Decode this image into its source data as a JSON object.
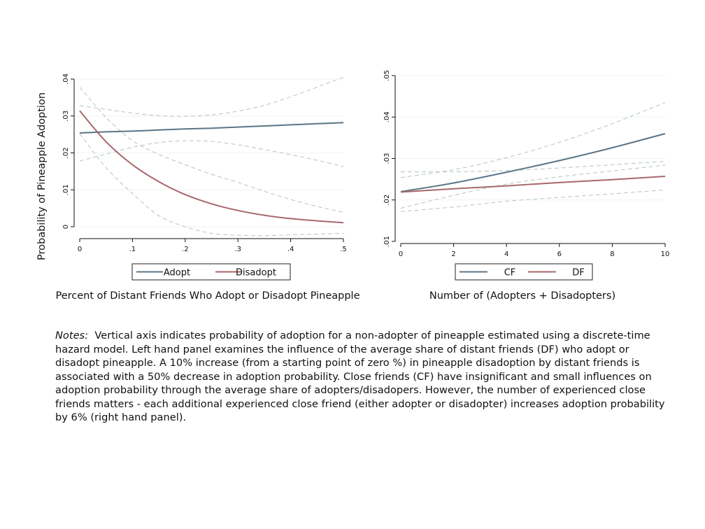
{
  "ylabel": "Probability of Pineapple Adoption",
  "colors": {
    "series_a": "#5b7587",
    "series_b": "#a8676c",
    "ci": "#b3c6bc",
    "grid": "#eef2f5",
    "axis": "#111111"
  },
  "chart_data": [
    {
      "type": "line",
      "xlabel": "Percent of Distant Friends Who Adopt or Disadopt Pineapple",
      "xlim": [
        0,
        0.5
      ],
      "ylim": [
        0,
        0.04
      ],
      "xticks": [
        0,
        0.1,
        0.2,
        0.3,
        0.4,
        0.5
      ],
      "xticklabels": [
        "0",
        ".1",
        ".2",
        ".3",
        ".4",
        ".5"
      ],
      "yticks": [
        0,
        0.01,
        0.02,
        0.03,
        0.04
      ],
      "yticklabels": [
        "0",
        ".01",
        ".02",
        ".03",
        ".04"
      ],
      "grid": true,
      "legend": "bottom",
      "x": [
        0,
        0.05,
        0.1,
        0.15,
        0.2,
        0.25,
        0.3,
        0.35,
        0.4,
        0.45,
        0.5
      ],
      "series": [
        {
          "name": "Adopt",
          "values": [
            0.0254,
            0.0257,
            0.0259,
            0.0262,
            0.0265,
            0.0267,
            0.027,
            0.0273,
            0.0276,
            0.0279,
            0.0282
          ],
          "ci_lower": [
            0.0178,
            0.0197,
            0.0215,
            0.0228,
            0.0233,
            0.0231,
            0.0222,
            0.0209,
            0.0195,
            0.018,
            0.0163
          ],
          "ci_upper": [
            0.0328,
            0.0318,
            0.0308,
            0.0301,
            0.0299,
            0.0303,
            0.0313,
            0.0329,
            0.0352,
            0.0378,
            0.0405
          ]
        },
        {
          "name": "Disadopt",
          "values": [
            0.0314,
            0.023,
            0.0168,
            0.0122,
            0.0087,
            0.0062,
            0.0044,
            0.0031,
            0.0022,
            0.0016,
            0.0011
          ],
          "ci_lower": [
            0.0252,
            0.016,
            0.009,
            0.003,
            0.0,
            -0.0018,
            -0.0023,
            -0.0024,
            -0.0022,
            -0.002,
            -0.0018
          ],
          "ci_upper": [
            0.0378,
            0.0296,
            0.0233,
            0.0196,
            0.0168,
            0.0142,
            0.012,
            0.0096,
            0.0074,
            0.0055,
            0.0039
          ]
        }
      ]
    },
    {
      "type": "line",
      "xlabel": "Number of (Adopters + Disadopters)",
      "xlim": [
        0,
        10
      ],
      "ylim": [
        0.01,
        0.05
      ],
      "xticks": [
        0,
        2,
        4,
        6,
        8,
        10
      ],
      "xticklabels": [
        "0",
        "2",
        "4",
        "6",
        "8",
        "10"
      ],
      "yticks": [
        0.01,
        0.02,
        0.03,
        0.04,
        0.05
      ],
      "yticklabels": [
        ".01",
        ".02",
        ".03",
        ".04",
        ".05"
      ],
      "grid": true,
      "legend": "bottom",
      "x": [
        0,
        2,
        4,
        6,
        8,
        10
      ],
      "series": [
        {
          "name": "CF",
          "values": [
            0.022,
            0.0241,
            0.0267,
            0.0295,
            0.0326,
            0.036
          ],
          "ci_lower": [
            0.018,
            0.0211,
            0.0238,
            0.0256,
            0.027,
            0.0284
          ],
          "ci_upper": [
            0.0254,
            0.0273,
            0.0302,
            0.0339,
            0.0384,
            0.0435
          ]
        },
        {
          "name": "DF",
          "values": [
            0.0219,
            0.0227,
            0.0234,
            0.0242,
            0.0249,
            0.0257
          ],
          "ci_lower": [
            0.0172,
            0.0183,
            0.0197,
            0.0206,
            0.0215,
            0.0224
          ],
          "ci_upper": [
            0.0268,
            0.0268,
            0.0271,
            0.0277,
            0.0285,
            0.0293
          ]
        }
      ]
    }
  ],
  "notes": {
    "label": "Notes:",
    "text": "Vertical axis indicates probability of adoption for a non-adopter of pineapple estimated using a discrete-time hazard model. Left hand panel examines the influence of the average share of distant friends (DF) who adopt or disadopt pineapple. A 10% increase (from a starting point of zero %) in pineapple disadoption by distant friends is associated with a 50% decrease in adoption probability. Close friends (CF) have insignificant and small influences on adoption probability through the average share of adopters/disadopers. However, the number of experienced close friends matters - each additional experienced close friend (either adopter or disadopter) increases adoption probability by 6% (right hand panel)."
  }
}
